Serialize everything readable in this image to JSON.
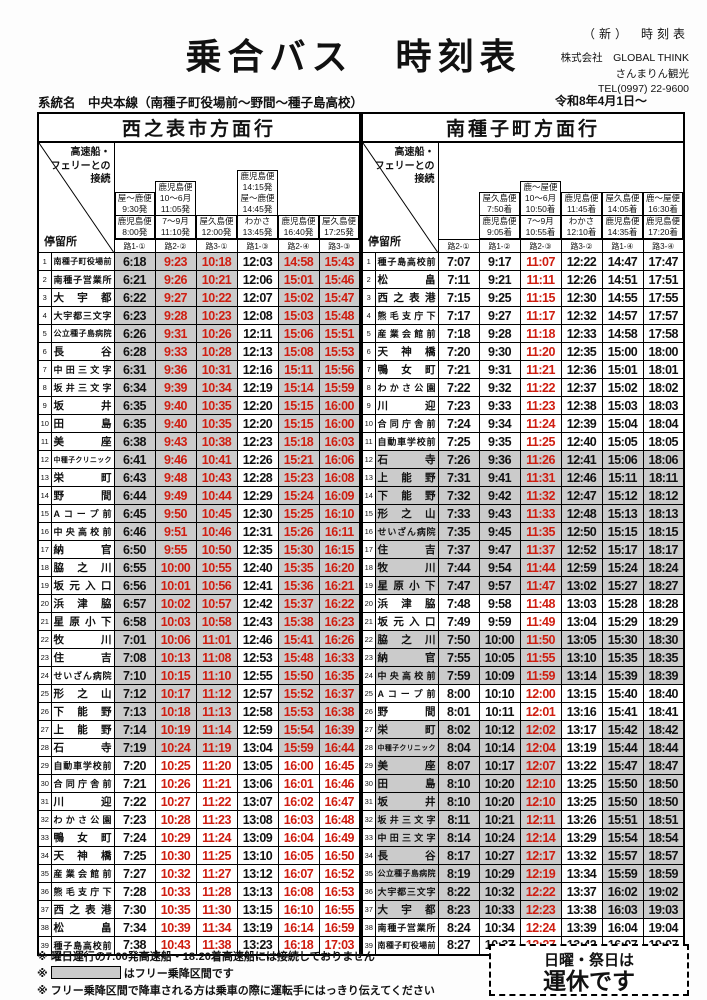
{
  "header": {
    "title": "乗合バス　時刻表",
    "corner_note": "（新）　時刻表",
    "company1": "株式会社　GLOBAL THINK",
    "company2": "さんまりん観光",
    "tel": "TEL(0997) 22-9600",
    "route_line": "系統名　中央本線（南種子町役場前～野間～種子島高校）",
    "effective_date": "令和8年4月1日～"
  },
  "colors": {
    "red": "#cf1d10",
    "shade": "#cbcbcb",
    "border": "#000000"
  },
  "corner_header": {
    "top_lines": [
      "高速船・",
      "フェリーとの",
      "接続"
    ],
    "bottom": "停留所"
  },
  "tables": [
    {
      "id": "west",
      "title": "西之表市方面行",
      "red_cols": [
        1,
        2,
        4,
        5
      ],
      "columns": [
        {
          "label": "路1-①",
          "upper": [
            "屋～鹿便",
            "9:30発"
          ],
          "lower": [
            "鹿児島便",
            "8:00発"
          ]
        },
        {
          "label": "路2-②",
          "upper": [
            "鹿児島便",
            "10～6月",
            "11:05発"
          ],
          "lower": [
            "7～9月",
            "11:10発"
          ]
        },
        {
          "label": "路3-①",
          "upper": null,
          "lower": [
            "屋久島便",
            "12:00発"
          ]
        },
        {
          "label": "路1-③",
          "upper": [
            "鹿児島便",
            "14:15発",
            "屋～鹿便",
            "14:45発"
          ],
          "lower": [
            "わかさ",
            "13:45発"
          ]
        },
        {
          "label": "路2-④",
          "upper": null,
          "lower": [
            "鹿児島便",
            "16:40発"
          ]
        },
        {
          "label": "路3-③",
          "upper": null,
          "lower": [
            "屋久島便",
            "17:25発"
          ]
        }
      ],
      "shading": {
        "name": [],
        "cols": [
          [
            [
              1,
              28
            ]
          ],
          [
            [
              1,
              28
            ]
          ],
          [
            [
              1,
              28
            ]
          ],
          [],
          [
            [
              1,
              28
            ]
          ],
          [
            [
              1,
              28
            ]
          ]
        ]
      },
      "rows": [
        [
          "南種子町役場前",
          "6:18",
          "9:23",
          "10:18",
          "12:03",
          "14:58",
          "15:43"
        ],
        [
          "南種子営業所",
          "6:21",
          "9:26",
          "10:21",
          "12:06",
          "15:01",
          "15:46"
        ],
        [
          "大宇都",
          "6:22",
          "9:27",
          "10:22",
          "12:07",
          "15:02",
          "15:47"
        ],
        [
          "大宇都三文字",
          "6:23",
          "9:28",
          "10:23",
          "12:08",
          "15:03",
          "15:48"
        ],
        [
          "公立種子島病院",
          "6:26",
          "9:31",
          "10:26",
          "12:11",
          "15:06",
          "15:51"
        ],
        [
          "長谷",
          "6:28",
          "9:33",
          "10:28",
          "12:13",
          "15:08",
          "15:53"
        ],
        [
          "中田三文字",
          "6:31",
          "9:36",
          "10:31",
          "12:16",
          "15:11",
          "15:56"
        ],
        [
          "坂井三文字",
          "6:34",
          "9:39",
          "10:34",
          "12:19",
          "15:14",
          "15:59"
        ],
        [
          "坂井",
          "6:35",
          "9:40",
          "10:35",
          "12:20",
          "15:15",
          "16:00"
        ],
        [
          "田島",
          "6:35",
          "9:40",
          "10:35",
          "12:20",
          "15:15",
          "16:00"
        ],
        [
          "美座",
          "6:38",
          "9:43",
          "10:38",
          "12:23",
          "15:18",
          "16:03"
        ],
        [
          "中種子クリニック",
          "6:41",
          "9:46",
          "10:41",
          "12:26",
          "15:21",
          "16:06"
        ],
        [
          "栄町",
          "6:43",
          "9:48",
          "10:43",
          "12:28",
          "15:23",
          "16:08"
        ],
        [
          "野間",
          "6:44",
          "9:49",
          "10:44",
          "12:29",
          "15:24",
          "16:09"
        ],
        [
          "Aコープ前",
          "6:45",
          "9:50",
          "10:45",
          "12:30",
          "15:25",
          "16:10"
        ],
        [
          "中央高校前",
          "6:46",
          "9:51",
          "10:46",
          "12:31",
          "15:26",
          "16:11"
        ],
        [
          "納官",
          "6:50",
          "9:55",
          "10:50",
          "12:35",
          "15:30",
          "16:15"
        ],
        [
          "脇之川",
          "6:55",
          "10:00",
          "10:55",
          "12:40",
          "15:35",
          "16:20"
        ],
        [
          "坂元入口",
          "6:56",
          "10:01",
          "10:56",
          "12:41",
          "15:36",
          "16:21"
        ],
        [
          "浜津脇",
          "6:57",
          "10:02",
          "10:57",
          "12:42",
          "15:37",
          "16:22"
        ],
        [
          "星原小下",
          "6:58",
          "10:03",
          "10:58",
          "12:43",
          "15:38",
          "16:23"
        ],
        [
          "牧川",
          "7:01",
          "10:06",
          "11:01",
          "12:46",
          "15:41",
          "16:26"
        ],
        [
          "住吉",
          "7:08",
          "10:13",
          "11:08",
          "12:53",
          "15:48",
          "16:33"
        ],
        [
          "せいざん病院",
          "7:10",
          "10:15",
          "11:10",
          "12:55",
          "15:50",
          "16:35"
        ],
        [
          "形之山",
          "7:12",
          "10:17",
          "11:12",
          "12:57",
          "15:52",
          "16:37"
        ],
        [
          "下能野",
          "7:13",
          "10:18",
          "11:13",
          "12:58",
          "15:53",
          "16:38"
        ],
        [
          "上能野",
          "7:14",
          "10:19",
          "11:14",
          "12:59",
          "15:54",
          "16:39"
        ],
        [
          "石寺",
          "7:19",
          "10:24",
          "11:19",
          "13:04",
          "15:59",
          "16:44"
        ],
        [
          "自動車学校前",
          "7:20",
          "10:25",
          "11:20",
          "13:05",
          "16:00",
          "16:45"
        ],
        [
          "合同庁舎前",
          "7:21",
          "10:26",
          "11:21",
          "13:06",
          "16:01",
          "16:46"
        ],
        [
          "川迎",
          "7:22",
          "10:27",
          "11:22",
          "13:07",
          "16:02",
          "16:47"
        ],
        [
          "わかさ公園",
          "7:23",
          "10:28",
          "11:23",
          "13:08",
          "16:03",
          "16:48"
        ],
        [
          "鴨女町",
          "7:24",
          "10:29",
          "11:24",
          "13:09",
          "16:04",
          "16:49"
        ],
        [
          "天神橋",
          "7:25",
          "10:30",
          "11:25",
          "13:10",
          "16:05",
          "16:50"
        ],
        [
          "産業会館前",
          "7:27",
          "10:32",
          "11:27",
          "13:12",
          "16:07",
          "16:52"
        ],
        [
          "熊毛支庁下",
          "7:28",
          "10:33",
          "11:28",
          "13:13",
          "16:08",
          "16:53"
        ],
        [
          "西之表港",
          "7:30",
          "10:35",
          "11:30",
          "13:15",
          "16:10",
          "16:55"
        ],
        [
          "松畠",
          "7:34",
          "10:39",
          "11:34",
          "13:19",
          "16:14",
          "16:59"
        ],
        [
          "種子島高校前",
          "7:38",
          "10:43",
          "11:38",
          "13:23",
          "16:18",
          "17:03"
        ]
      ]
    },
    {
      "id": "south",
      "title": "南種子町方面行",
      "red_cols": [
        2
      ],
      "columns": [
        {
          "label": "路2-①",
          "upper": null,
          "lower": null
        },
        {
          "label": "路1-②",
          "upper": [
            "屋久島便",
            "7:50着"
          ],
          "lower": [
            "鹿児島便",
            "9:05着"
          ]
        },
        {
          "label": "路2-③",
          "upper": [
            "鹿～屋便",
            "10～6月",
            "10:50着"
          ],
          "lower": [
            "7～9月",
            "10:55着"
          ]
        },
        {
          "label": "路3-②",
          "upper": [
            "鹿児島便",
            "11:45着"
          ],
          "lower": [
            "わかさ",
            "12:10着"
          ]
        },
        {
          "label": "路1-④",
          "upper": [
            "屋久島便",
            "14:05着"
          ],
          "lower": [
            "鹿児島便",
            "14:35着"
          ]
        },
        {
          "label": "路3-④",
          "upper": [
            "鹿～屋便",
            "16:30着"
          ],
          "lower": [
            "鹿児島便",
            "17:20着"
          ]
        }
      ],
      "shading": {
        "name": [
          [
            12,
            19
          ],
          [
            22,
            24
          ],
          [
            27,
            37
          ]
        ],
        "cols": [
          [
            [
              12,
              19
            ],
            [
              22,
              24
            ],
            [
              27,
              37
            ]
          ],
          [
            [
              12,
              19
            ],
            [
              22,
              24
            ],
            [
              27,
              37
            ]
          ],
          [
            [
              12,
              19
            ],
            [
              22,
              24
            ],
            [
              27,
              37
            ]
          ],
          [
            [
              12,
              19
            ],
            [
              22,
              24
            ]
          ],
          [
            [
              12,
              19
            ],
            [
              22,
              24
            ],
            [
              27,
              37
            ]
          ],
          [
            [
              12,
              19
            ],
            [
              22,
              24
            ],
            [
              27,
              37
            ]
          ]
        ]
      },
      "rows": [
        [
          "種子島高校前",
          "7:07",
          "9:17",
          "11:07",
          "12:22",
          "14:47",
          "17:47"
        ],
        [
          "松畠",
          "7:11",
          "9:21",
          "11:11",
          "12:26",
          "14:51",
          "17:51"
        ],
        [
          "西之表港",
          "7:15",
          "9:25",
          "11:15",
          "12:30",
          "14:55",
          "17:55"
        ],
        [
          "熊毛支庁下",
          "7:17",
          "9:27",
          "11:17",
          "12:32",
          "14:57",
          "17:57"
        ],
        [
          "産業会館前",
          "7:18",
          "9:28",
          "11:18",
          "12:33",
          "14:58",
          "17:58"
        ],
        [
          "天神橋",
          "7:20",
          "9:30",
          "11:20",
          "12:35",
          "15:00",
          "18:00"
        ],
        [
          "鴨女町",
          "7:21",
          "9:31",
          "11:21",
          "12:36",
          "15:01",
          "18:01"
        ],
        [
          "わかさ公園",
          "7:22",
          "9:32",
          "11:22",
          "12:37",
          "15:02",
          "18:02"
        ],
        [
          "川迎",
          "7:23",
          "9:33",
          "11:23",
          "12:38",
          "15:03",
          "18:03"
        ],
        [
          "合同庁舎前",
          "7:24",
          "9:34",
          "11:24",
          "12:39",
          "15:04",
          "18:04"
        ],
        [
          "自動車学校前",
          "7:25",
          "9:35",
          "11:25",
          "12:40",
          "15:05",
          "18:05"
        ],
        [
          "石寺",
          "7:26",
          "9:36",
          "11:26",
          "12:41",
          "15:06",
          "18:06"
        ],
        [
          "上能野",
          "7:31",
          "9:41",
          "11:31",
          "12:46",
          "15:11",
          "18:11"
        ],
        [
          "下能野",
          "7:32",
          "9:42",
          "11:32",
          "12:47",
          "15:12",
          "18:12"
        ],
        [
          "形之山",
          "7:33",
          "9:43",
          "11:33",
          "12:48",
          "15:13",
          "18:13"
        ],
        [
          "せいざん病院",
          "7:35",
          "9:45",
          "11:35",
          "12:50",
          "15:15",
          "18:15"
        ],
        [
          "住吉",
          "7:37",
          "9:47",
          "11:37",
          "12:52",
          "15:17",
          "18:17"
        ],
        [
          "牧川",
          "7:44",
          "9:54",
          "11:44",
          "12:59",
          "15:24",
          "18:24"
        ],
        [
          "星原小下",
          "7:47",
          "9:57",
          "11:47",
          "13:02",
          "15:27",
          "18:27"
        ],
        [
          "浜津脇",
          "7:48",
          "9:58",
          "11:48",
          "13:03",
          "15:28",
          "18:28"
        ],
        [
          "坂元入口",
          "7:49",
          "9:59",
          "11:49",
          "13:04",
          "15:29",
          "18:29"
        ],
        [
          "脇之川",
          "7:50",
          "10:00",
          "11:50",
          "13:05",
          "15:30",
          "18:30"
        ],
        [
          "納官",
          "7:55",
          "10:05",
          "11:55",
          "13:10",
          "15:35",
          "18:35"
        ],
        [
          "中央高校前",
          "7:59",
          "10:09",
          "11:59",
          "13:14",
          "15:39",
          "18:39"
        ],
        [
          "Aコープ前",
          "8:00",
          "10:10",
          "12:00",
          "13:15",
          "15:40",
          "18:40"
        ],
        [
          "野間",
          "8:01",
          "10:11",
          "12:01",
          "13:16",
          "15:41",
          "18:41"
        ],
        [
          "栄町",
          "8:02",
          "10:12",
          "12:02",
          "13:17",
          "15:42",
          "18:42"
        ],
        [
          "中種子クリニック",
          "8:04",
          "10:14",
          "12:04",
          "13:19",
          "15:44",
          "18:44"
        ],
        [
          "美座",
          "8:07",
          "10:17",
          "12:07",
          "13:22",
          "15:47",
          "18:47"
        ],
        [
          "田島",
          "8:10",
          "10:20",
          "12:10",
          "13:25",
          "15:50",
          "18:50"
        ],
        [
          "坂井",
          "8:10",
          "10:20",
          "12:10",
          "13:25",
          "15:50",
          "18:50"
        ],
        [
          "坂井三文字",
          "8:11",
          "10:21",
          "12:11",
          "13:26",
          "15:51",
          "18:51"
        ],
        [
          "中田三文字",
          "8:14",
          "10:24",
          "12:14",
          "13:29",
          "15:54",
          "18:54"
        ],
        [
          "長谷",
          "8:17",
          "10:27",
          "12:17",
          "13:32",
          "15:57",
          "18:57"
        ],
        [
          "公立種子島病院",
          "8:19",
          "10:29",
          "12:19",
          "13:34",
          "15:59",
          "18:59"
        ],
        [
          "大宇都三文字",
          "8:22",
          "10:32",
          "12:22",
          "13:37",
          "16:02",
          "19:02"
        ],
        [
          "大宇都",
          "8:23",
          "10:33",
          "12:23",
          "13:38",
          "16:03",
          "19:03"
        ],
        [
          "南種子営業所",
          "8:24",
          "10:34",
          "12:24",
          "13:39",
          "16:04",
          "19:04"
        ],
        [
          "南種子町役場前",
          "8:27",
          "10:37",
          "12:27",
          "13:42",
          "16:07",
          "19:07"
        ]
      ]
    }
  ],
  "notes": {
    "n1": "※ 曜日運行の7:00発高速船・18:20着高速船には接続しておりません",
    "n2_pre": "※",
    "n2_text": "はフリー乗降区間です",
    "n3": "※ フリー乗降区間で降車される方は乗車の際に運転手にはっきり伝えてください"
  },
  "holiday_box": {
    "line1": "日曜・祭日は",
    "line2": "運休です"
  }
}
